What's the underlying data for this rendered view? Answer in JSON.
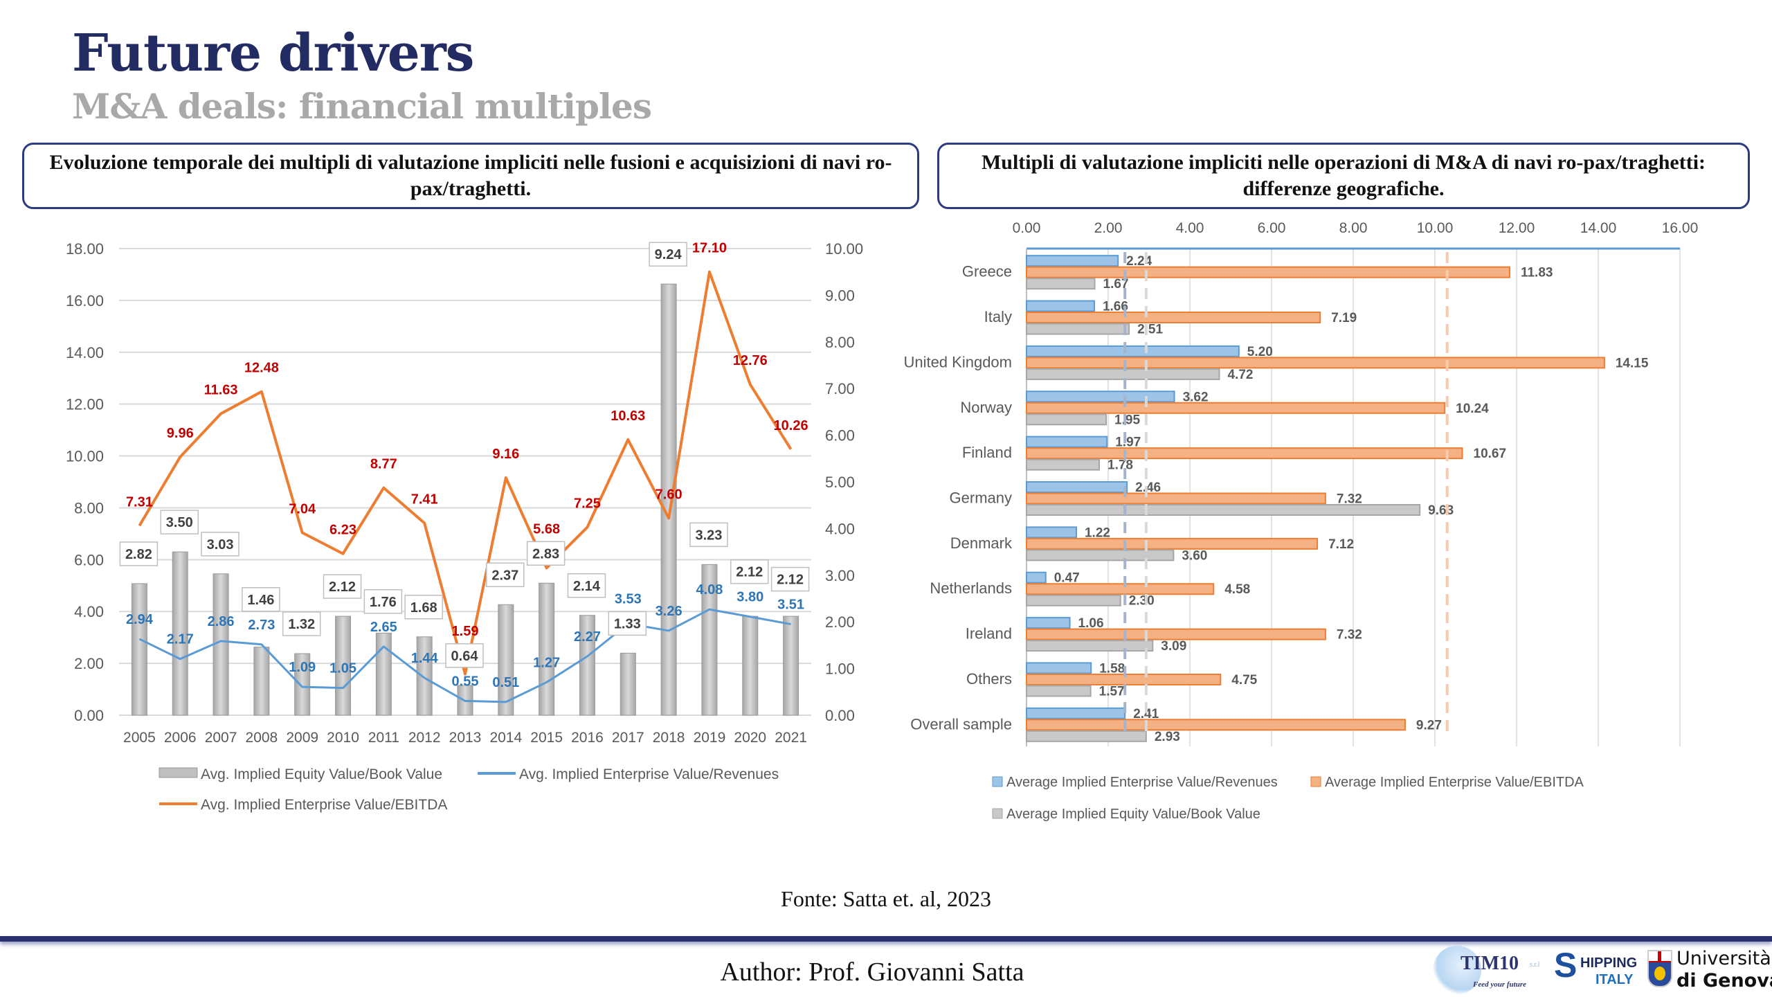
{
  "header": {
    "title": "Future drivers",
    "subtitle": "M&A deals: financial multiples"
  },
  "panels": {
    "left_title": "Evoluzione temporale dei multipli di valutazione impliciti nelle fusioni e acquisizioni di navi ro-pax/traghetti.",
    "right_title": "Multipli di valutazione impliciti nelle operazioni di M&A di navi ro-pax/traghetti: differenze geografiche."
  },
  "chart_data": [
    {
      "type": "bar+line",
      "categories": [
        "2005",
        "2006",
        "2007",
        "2008",
        "2009",
        "2010",
        "2011",
        "2012",
        "2013",
        "2014",
        "2015",
        "2016",
        "2017",
        "2018",
        "2019",
        "2020",
        "2021"
      ],
      "left_axis": {
        "ylim": [
          0,
          18
        ],
        "ticks": [
          "0.00",
          "2.00",
          "4.00",
          "6.00",
          "8.00",
          "10.00",
          "12.00",
          "14.00",
          "16.00",
          "18.00"
        ]
      },
      "right_axis": {
        "ylim": [
          0,
          10
        ],
        "ticks": [
          "0.00",
          "1.00",
          "2.00",
          "3.00",
          "4.00",
          "5.00",
          "6.00",
          "7.00",
          "8.00",
          "9.00",
          "10.00"
        ]
      },
      "grid": true,
      "legend_position": "bottom",
      "series": [
        {
          "name": "Avg. Implied Equity Value/Book Value",
          "type": "bar",
          "axis": "right",
          "color": "#bfbfbf",
          "label_color": "#404040",
          "values": [
            2.82,
            3.5,
            3.03,
            1.46,
            1.32,
            2.12,
            1.76,
            1.68,
            0.64,
            2.37,
            2.83,
            2.14,
            1.33,
            9.24,
            3.23,
            2.12,
            2.12
          ]
        },
        {
          "name": "Avg. Implied Enterprise Value/Revenues",
          "type": "line",
          "axis": "left",
          "color": "#5b9bd5",
          "label_color": "#2e75b6",
          "values": [
            2.94,
            2.17,
            2.86,
            2.73,
            1.09,
            1.05,
            2.65,
            1.44,
            0.55,
            0.51,
            1.27,
            2.27,
            3.53,
            3.26,
            4.08,
            3.8,
            3.51
          ]
        },
        {
          "name": "Avg. Implied Enterprise Value/EBITDA",
          "type": "line",
          "axis": "left",
          "color": "#ed7d31",
          "label_color": "#c00000",
          "values": [
            7.31,
            9.96,
            11.63,
            12.48,
            7.04,
            6.23,
            8.77,
            7.41,
            1.59,
            9.16,
            5.68,
            7.25,
            10.63,
            7.6,
            17.1,
            12.76,
            10.26
          ]
        }
      ]
    },
    {
      "type": "bar",
      "orientation": "horizontal",
      "categories": [
        "Greece",
        "Italy",
        "United Kingdom",
        "Norway",
        "Finland",
        "Germany",
        "Denmark",
        "Netherlands",
        "Ireland",
        "Others",
        "Overall sample"
      ],
      "xlim": [
        0,
        16
      ],
      "x_ticks": [
        "0.00",
        "2.00",
        "4.00",
        "6.00",
        "8.00",
        "10.00",
        "12.00",
        "14.00",
        "16.00"
      ],
      "x_axis_position": "top",
      "grid": true,
      "legend_position": "bottom",
      "reference_lines": [
        {
          "value": 2.41,
          "color": "#a5b4c8"
        },
        {
          "value": 2.93,
          "color": "#d9d9d9"
        },
        {
          "value": 10.3,
          "color": "#f8cbad"
        }
      ],
      "series": [
        {
          "name": "Average Implied Enterprise Value/Revenues",
          "color": "#9dc3e6",
          "border": "#5b9bd5",
          "values": [
            2.24,
            1.66,
            5.2,
            3.62,
            1.97,
            2.46,
            1.22,
            0.47,
            1.06,
            1.58,
            2.41
          ]
        },
        {
          "name": "Average Implied Enterprise Value/EBITDA",
          "color": "#f4b183",
          "border": "#ed7d31",
          "values": [
            11.83,
            7.19,
            14.15,
            10.24,
            10.67,
            7.32,
            7.12,
            4.58,
            7.32,
            4.75,
            9.27
          ]
        },
        {
          "name": "Average Implied Equity Value/Book Value",
          "color": "#c9c9c9",
          "border": "#a6a6a6",
          "values": [
            1.67,
            2.51,
            4.72,
            1.95,
            1.78,
            9.63,
            3.6,
            2.3,
            3.09,
            1.57,
            2.93
          ]
        }
      ]
    }
  ],
  "footer": {
    "source": "Fonte: Satta et. al, 2023",
    "author": "Author: Prof. Giovanni Satta",
    "logos": {
      "tim10": "TIM10",
      "tim10_suffix": "s.r.l",
      "tim10_tagline": "Feed your future",
      "shipping": "HIPPING",
      "shipping_s": "S",
      "shipping_italy": "ITALY",
      "unige_1": "Università",
      "unige_2": "di Genova"
    }
  }
}
